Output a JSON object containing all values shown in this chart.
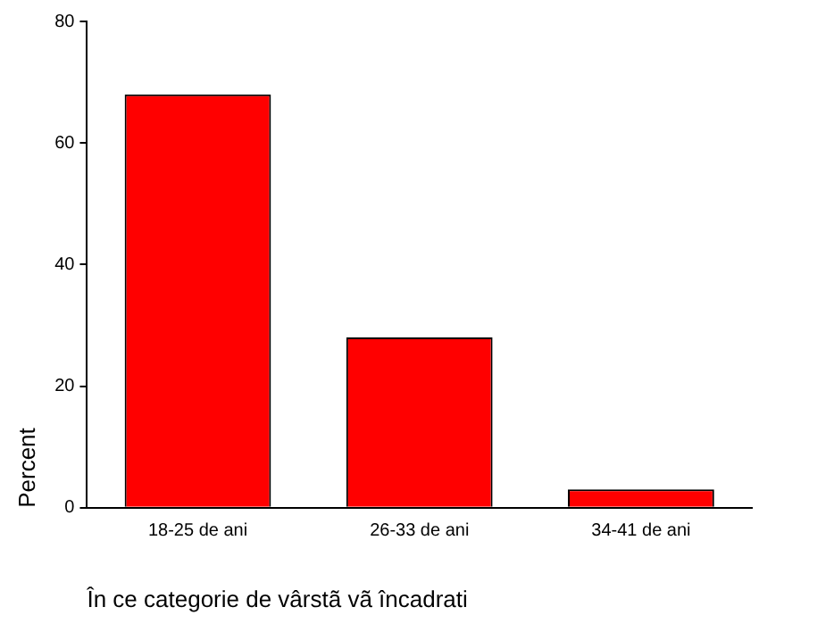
{
  "chart_data": {
    "type": "bar",
    "xlabel": "În ce categorie de vârstã vã încadrati",
    "ylabel": "Percent",
    "categories": [
      "18-25 de ani",
      "26-33 de ani",
      "34-41 de ani"
    ],
    "values": [
      68,
      28,
      3
    ],
    "color": "#ff0000",
    "ylim": [
      0,
      80
    ],
    "yticks": [
      0,
      20,
      40,
      60,
      80
    ],
    "grid": false,
    "legend": false
  }
}
